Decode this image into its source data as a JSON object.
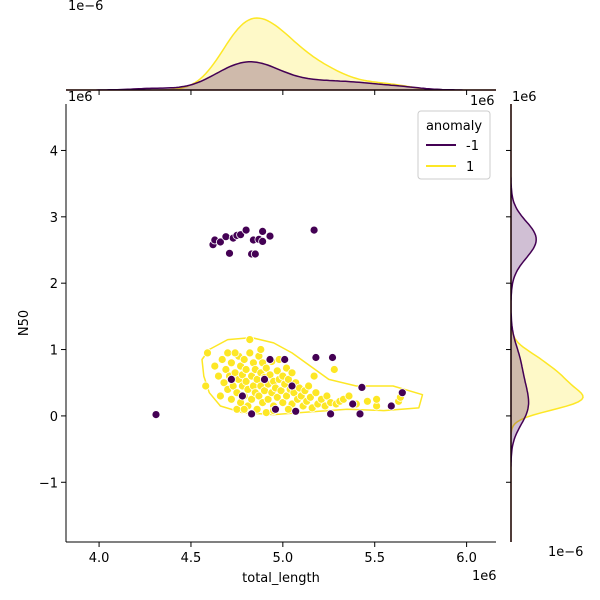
{
  "chart_data": {
    "type": "scatter",
    "xlabel": "total_length",
    "ylabel": "N50",
    "x_offset": "1e6",
    "y_offset": "1e6",
    "top_marginal_offset": "1e−6",
    "top_marginal_x_offset": "1e6",
    "right_marginal_y_offset": "1e6",
    "right_marginal_offset": "1e−6",
    "xlim": [
      3.82,
      6.16
    ],
    "ylim": [
      -1.9,
      4.7
    ],
    "x_ticks": [
      "4.0",
      "4.5",
      "5.0",
      "5.5",
      "6.0"
    ],
    "x_tick_values": [
      4.0,
      4.5,
      5.0,
      5.5,
      6.0
    ],
    "y_ticks": [
      "−1",
      "0",
      "1",
      "2",
      "3",
      "4"
    ],
    "y_tick_values": [
      -1,
      0,
      1,
      2,
      3,
      4
    ],
    "legend": {
      "title": "anomaly",
      "placement": "top-right",
      "entries": [
        {
          "label": "-1",
          "color": "#440154"
        },
        {
          "label": "1",
          "color": "#fde725"
        }
      ]
    },
    "series": [
      {
        "name": "-1",
        "color": "#440154",
        "points": [
          [
            4.31,
            0.02
          ],
          [
            4.62,
            2.58
          ],
          [
            4.63,
            2.65
          ],
          [
            4.66,
            2.62
          ],
          [
            4.69,
            2.7
          ],
          [
            4.71,
            2.45
          ],
          [
            4.73,
            2.68
          ],
          [
            4.75,
            2.72
          ],
          [
            4.77,
            2.73
          ],
          [
            4.8,
            2.8
          ],
          [
            4.83,
            2.44
          ],
          [
            4.84,
            2.65
          ],
          [
            4.85,
            2.44
          ],
          [
            4.87,
            2.66
          ],
          [
            4.89,
            2.78
          ],
          [
            4.89,
            2.63
          ],
          [
            4.93,
            2.71
          ],
          [
            5.17,
            2.8
          ],
          [
            4.83,
            0.03
          ],
          [
            4.93,
            0.85
          ],
          [
            4.96,
            0.1
          ],
          [
            5.01,
            0.85
          ],
          [
            5.07,
            0.07
          ],
          [
            5.18,
            0.88
          ],
          [
            5.27,
            0.88
          ],
          [
            5.26,
            0.03
          ],
          [
            5.38,
            0.18
          ],
          [
            5.43,
            0.43
          ],
          [
            5.42,
            0.03
          ],
          [
            5.59,
            0.15
          ],
          [
            5.65,
            0.35
          ],
          [
            4.78,
            0.3
          ],
          [
            4.9,
            0.55
          ],
          [
            5.05,
            0.45
          ],
          [
            4.72,
            0.55
          ]
        ]
      },
      {
        "name": "1",
        "color": "#fde725",
        "points": [
          [
            4.58,
            0.45
          ],
          [
            4.59,
            0.95
          ],
          [
            4.63,
            0.75
          ],
          [
            4.65,
            0.6
          ],
          [
            4.66,
            0.3
          ],
          [
            4.67,
            0.85
          ],
          [
            4.68,
            0.5
          ],
          [
            4.69,
            0.7
          ],
          [
            4.7,
            0.4
          ],
          [
            4.7,
            0.95
          ],
          [
            4.71,
            0.6
          ],
          [
            4.72,
            0.25
          ],
          [
            4.72,
            0.8
          ],
          [
            4.73,
            0.45
          ],
          [
            4.74,
            0.65
          ],
          [
            4.75,
            0.1
          ],
          [
            4.75,
            0.35
          ],
          [
            4.76,
            0.9
          ],
          [
            4.76,
            0.55
          ],
          [
            4.77,
            0.2
          ],
          [
            4.77,
            0.75
          ],
          [
            4.78,
            0.45
          ],
          [
            4.78,
            0.62
          ],
          [
            4.79,
            0.85
          ],
          [
            4.79,
            0.3
          ],
          [
            4.8,
            0.52
          ],
          [
            4.8,
            0.7
          ],
          [
            4.81,
            0.15
          ],
          [
            4.81,
            0.4
          ],
          [
            4.82,
            0.95
          ],
          [
            4.82,
            1.15
          ],
          [
            4.83,
            0.6
          ],
          [
            4.83,
            0.25
          ],
          [
            4.84,
            0.8
          ],
          [
            4.84,
            0.45
          ],
          [
            4.85,
            0.35
          ],
          [
            4.85,
            0.7
          ],
          [
            4.86,
            0.55
          ],
          [
            4.86,
            0.1
          ],
          [
            4.87,
            0.9
          ],
          [
            4.87,
            0.3
          ],
          [
            4.88,
            0.65
          ],
          [
            4.88,
            0.45
          ],
          [
            4.89,
            0.2
          ],
          [
            4.89,
            0.8
          ],
          [
            4.9,
            0.38
          ],
          [
            4.9,
            0.58
          ],
          [
            4.91,
            0.05
          ],
          [
            4.91,
            0.72
          ],
          [
            4.92,
            0.48
          ],
          [
            4.92,
            0.25
          ],
          [
            4.93,
            0.62
          ],
          [
            4.94,
            0.35
          ],
          [
            4.94,
            0.82
          ],
          [
            4.95,
            0.52
          ],
          [
            4.95,
            0.15
          ],
          [
            4.96,
            0.42
          ],
          [
            4.97,
            0.68
          ],
          [
            4.97,
            0.28
          ],
          [
            4.98,
            0.55
          ],
          [
            4.98,
            0.85
          ],
          [
            4.99,
            0.38
          ],
          [
            5.0,
            0.6
          ],
          [
            5.0,
            0.2
          ],
          [
            5.01,
            0.48
          ],
          [
            5.02,
            0.72
          ],
          [
            5.02,
            0.3
          ],
          [
            5.03,
            0.55
          ],
          [
            5.04,
            0.4
          ],
          [
            5.05,
            0.65
          ],
          [
            5.05,
            0.18
          ],
          [
            5.06,
            0.35
          ],
          [
            5.07,
            0.5
          ],
          [
            5.08,
            0.25
          ],
          [
            5.09,
            0.42
          ],
          [
            5.1,
            0.3
          ],
          [
            5.11,
            0.15
          ],
          [
            5.12,
            0.38
          ],
          [
            5.13,
            0.22
          ],
          [
            5.14,
            0.45
          ],
          [
            5.15,
            0.28
          ],
          [
            5.16,
            0.12
          ],
          [
            5.17,
            0.6
          ],
          [
            5.18,
            0.35
          ],
          [
            5.19,
            0.18
          ],
          [
            5.21,
            0.25
          ],
          [
            5.23,
            0.15
          ],
          [
            5.24,
            0.3
          ],
          [
            5.26,
            0.2
          ],
          [
            5.28,
            0.7
          ],
          [
            5.29,
            0.18
          ],
          [
            5.31,
            0.22
          ],
          [
            5.33,
            0.25
          ],
          [
            5.36,
            0.3
          ],
          [
            5.4,
            0.18
          ],
          [
            5.46,
            0.22
          ],
          [
            5.51,
            0.15
          ],
          [
            5.51,
            0.25
          ],
          [
            5.63,
            0.22
          ],
          [
            5.64,
            0.28
          ],
          [
            4.74,
            0.95
          ],
          [
            4.88,
            1.0
          ],
          [
            4.79,
            0.1
          ],
          [
            4.95,
            0.08
          ],
          [
            5.03,
            0.1
          ]
        ]
      }
    ]
  }
}
